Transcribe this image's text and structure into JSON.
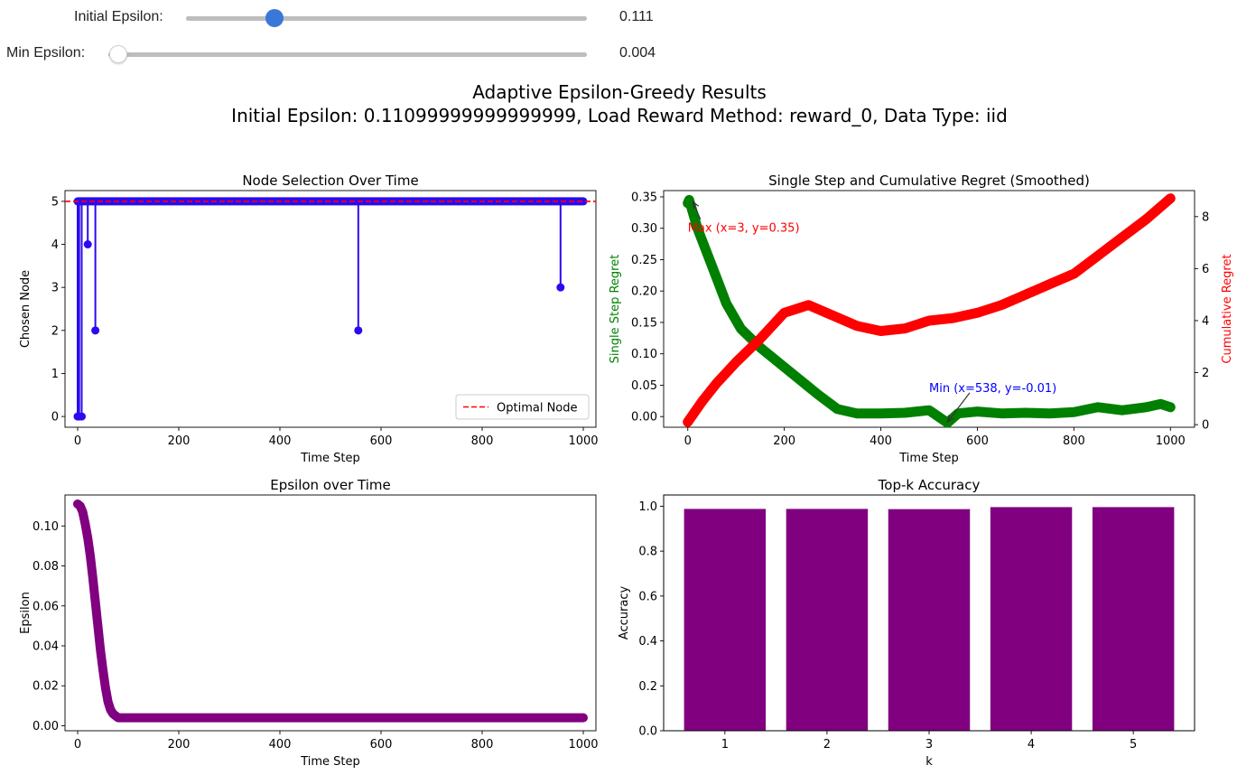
{
  "sliders": [
    {
      "label": "Initial Epsilon:",
      "value_text": "0.111",
      "fraction": 0.22
    },
    {
      "label": "Min Epsilon:",
      "value_text": "0.004",
      "fraction": 0.02
    }
  ],
  "figure": {
    "suptitle_line1": "Adaptive Epsilon-Greedy Results",
    "suptitle_line2": "Initial Epsilon: 0.11099999999999999, Load Reward Method: reward_0, Data Type: iid"
  },
  "colors": {
    "accent": "#3a78d8",
    "blue": "#2a0af0",
    "purple": "#800080",
    "green": "#008000",
    "red": "#ff0000"
  },
  "chart_data": [
    {
      "type": "scatter",
      "title": "Node Selection Over Time",
      "xlabel": "Time Step",
      "ylabel": "Chosen Node",
      "xlim": [
        -25,
        1025
      ],
      "ylim": [
        -0.25,
        5.25
      ],
      "xticks": [
        0,
        200,
        400,
        600,
        800,
        1000
      ],
      "yticks": [
        0,
        1,
        2,
        3,
        4,
        5
      ],
      "default_value": 5,
      "x_range": [
        0,
        1000
      ],
      "series": [
        {
          "points": [
            [
              0,
              0
            ],
            [
              3,
              0
            ],
            [
              8,
              0
            ],
            [
              20,
              4
            ],
            [
              35,
              2
            ],
            [
              555,
              2
            ],
            [
              955,
              3
            ]
          ]
        }
      ],
      "reference_line": {
        "y": 5,
        "label": "Optimal Node",
        "style": "dashed",
        "color": "#ff0000"
      },
      "legend": "lower right"
    },
    {
      "type": "line",
      "title": "Single Step and Cumulative Regret (Smoothed)",
      "xlabel": "Time Step",
      "xlim": [
        -50,
        1050
      ],
      "xticks": [
        0,
        200,
        400,
        600,
        800,
        1000
      ],
      "ylabel": "Single Step Regret",
      "ylim": [
        -0.017,
        0.36
      ],
      "yticks": [
        0.0,
        0.05,
        0.1,
        0.15,
        0.2,
        0.25,
        0.3,
        0.35
      ],
      "ylabel_right": "Cumulative Regret",
      "ylim_right": [
        -0.1,
        9.0
      ],
      "yticks_right": [
        0,
        2,
        4,
        6,
        8
      ],
      "series": [
        {
          "axis": "left",
          "color": "#008000",
          "x": [
            0,
            3,
            20,
            50,
            80,
            110,
            150,
            190,
            230,
            270,
            310,
            350,
            400,
            450,
            500,
            538,
            560,
            600,
            650,
            700,
            750,
            800,
            850,
            900,
            950,
            980,
            1000
          ],
          "y": [
            0.34,
            0.345,
            0.3,
            0.24,
            0.18,
            0.14,
            0.11,
            0.085,
            0.06,
            0.035,
            0.012,
            0.005,
            0.005,
            0.006,
            0.01,
            -0.01,
            0.005,
            0.008,
            0.005,
            0.006,
            0.005,
            0.007,
            0.015,
            0.01,
            0.015,
            0.02,
            0.015
          ]
        },
        {
          "axis": "right",
          "color": "#ff0000",
          "x": [
            0,
            30,
            60,
            100,
            150,
            200,
            250,
            300,
            350,
            400,
            450,
            500,
            550,
            600,
            650,
            700,
            750,
            800,
            850,
            900,
            950,
            1000
          ],
          "y": [
            0.1,
            0.9,
            1.6,
            2.4,
            3.3,
            4.3,
            4.6,
            4.2,
            3.8,
            3.6,
            3.7,
            4.0,
            4.1,
            4.3,
            4.6,
            5.0,
            5.4,
            5.8,
            6.5,
            7.2,
            7.9,
            8.7
          ]
        }
      ],
      "annotations": [
        {
          "text": "Max (x=3, y=0.35)",
          "x": 3,
          "y": 0.345,
          "text_x": 0,
          "text_y": 0.3,
          "color": "#ff0000"
        },
        {
          "text": "Min (x=538, y=-0.01)",
          "x": 538,
          "y": -0.01,
          "text_x": 500,
          "text_y": 0.045,
          "color": "#0000ff"
        }
      ]
    },
    {
      "type": "scatter",
      "title": "Epsilon over Time",
      "xlabel": "Time Step",
      "ylabel": "Epsilon",
      "xlim": [
        -25,
        1025
      ],
      "ylim": [
        -0.0025,
        0.1155
      ],
      "xticks": [
        0,
        200,
        400,
        600,
        800,
        1000
      ],
      "yticks": [
        0.0,
        0.02,
        0.04,
        0.06,
        0.08,
        0.1
      ],
      "yticklabels": [
        "0.00",
        "0.02",
        "0.04",
        "0.06",
        "0.08",
        "0.10"
      ],
      "series": [
        {
          "x": [
            0,
            5,
            10,
            15,
            20,
            25,
            30,
            35,
            40,
            45,
            50,
            55,
            60,
            65,
            70,
            75,
            80,
            85,
            1000
          ],
          "y": [
            0.111,
            0.11,
            0.107,
            0.101,
            0.094,
            0.085,
            0.074,
            0.062,
            0.05,
            0.038,
            0.028,
            0.019,
            0.012,
            0.008,
            0.006,
            0.005,
            0.004,
            0.004,
            0.004
          ]
        }
      ]
    },
    {
      "type": "bar",
      "title": "Top-k Accuracy",
      "xlabel": "k",
      "ylabel": "Accuracy",
      "ylim": [
        0,
        1.05
      ],
      "yticks": [
        0.0,
        0.2,
        0.4,
        0.6,
        0.8,
        1.0
      ],
      "categories": [
        "1",
        "2",
        "3",
        "4",
        "5"
      ],
      "values": [
        0.988,
        0.988,
        0.987,
        0.996,
        0.996
      ]
    }
  ]
}
